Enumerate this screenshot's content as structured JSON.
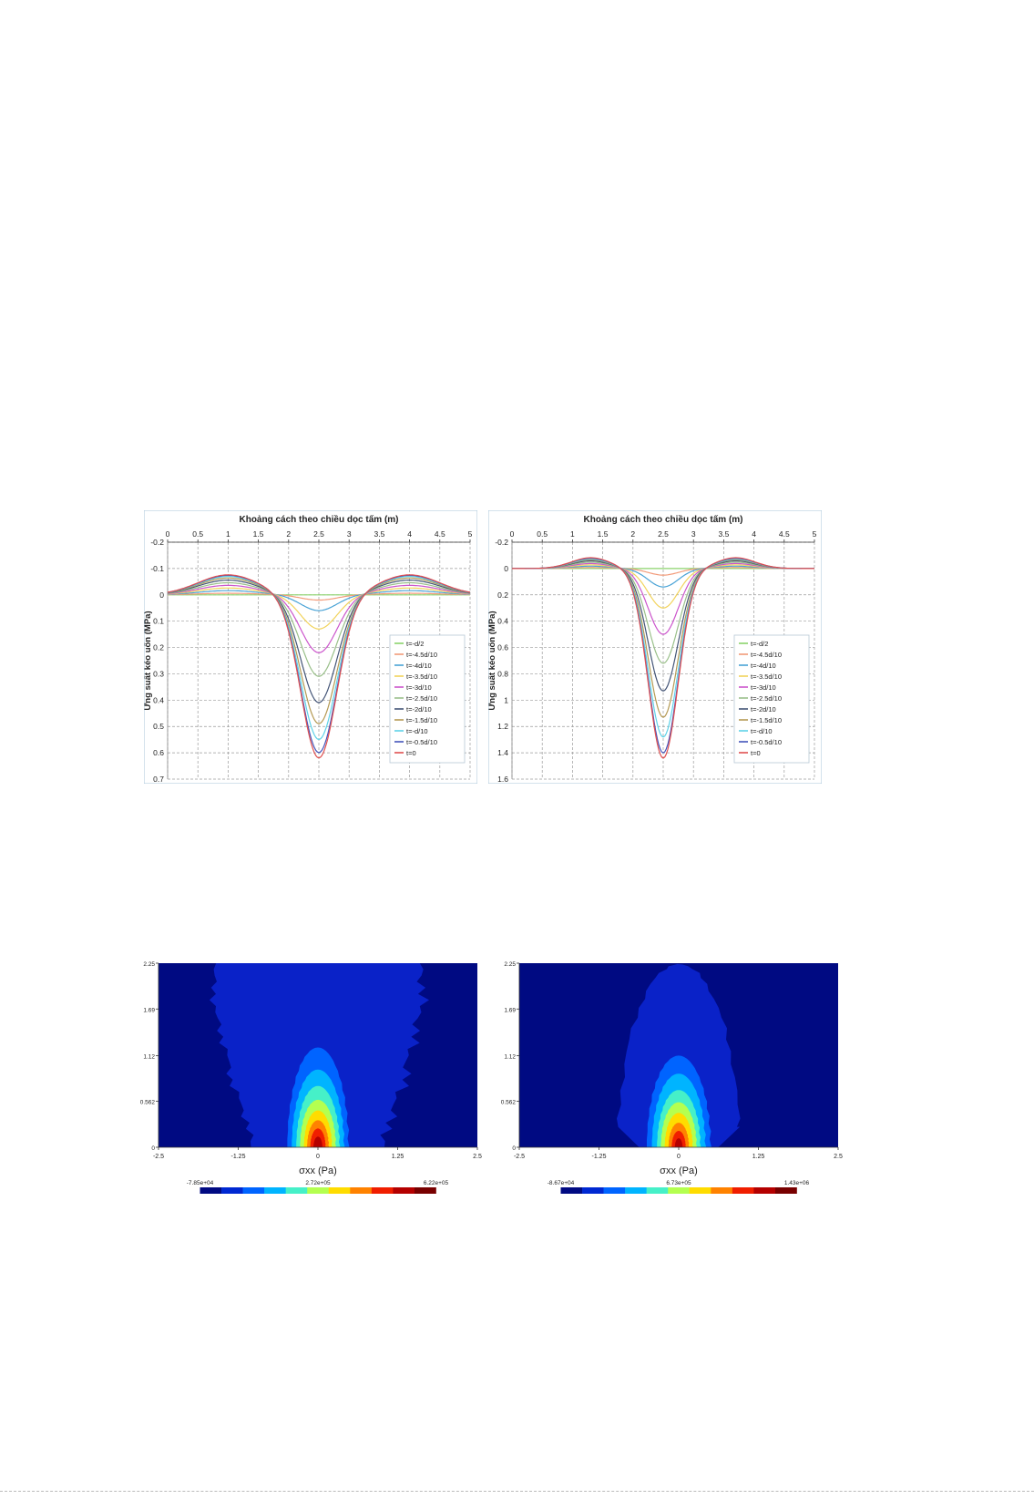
{
  "chart_data": [
    {
      "type": "line",
      "title": "Khoảng cách theo chiều dọc tấm (m)",
      "xlabel": "Khoảng cách theo chiều dọc tấm (m)",
      "ylabel": "Ứng suất kéo uốn (MPa)",
      "xlim": [
        0,
        5
      ],
      "ylim": [
        -0.2,
        0.7
      ],
      "y_inverted": true,
      "x_ticks": [
        "0",
        "0.5",
        "1",
        "1.5",
        "2",
        "2.5",
        "3",
        "3.5",
        "4",
        "4.5",
        "5"
      ],
      "y_ticks": [
        "-0.2",
        "-0.1",
        "0",
        "0.1",
        "0.2",
        "0.3",
        "0.4",
        "0.5",
        "0.6",
        "0.7"
      ],
      "grid": true,
      "legend_position": "right",
      "curve_model": {
        "center": 2.5,
        "width": 0.42,
        "side_peak_x": 1.0,
        "side_width": 0.7
      },
      "series": [
        {
          "name": "t=-d/2",
          "color": "#8bd36c",
          "peak": 0.0,
          "side": 0.0
        },
        {
          "name": "t=-4.5d/10",
          "color": "#f29b7a",
          "peak": 0.02,
          "side": -0.006
        },
        {
          "name": "t=-4d/10",
          "color": "#4aa3d6",
          "peak": 0.06,
          "side": -0.016
        },
        {
          "name": "t=-3.5d/10",
          "color": "#f2d35c",
          "peak": 0.13,
          "side": -0.026
        },
        {
          "name": "t=-3d/10",
          "color": "#cc55cc",
          "peak": 0.22,
          "side": -0.036
        },
        {
          "name": "t=-2.5d/10",
          "color": "#9ac08a",
          "peak": 0.31,
          "side": -0.046
        },
        {
          "name": "t=-2d/10",
          "color": "#445577",
          "peak": 0.41,
          "side": -0.056
        },
        {
          "name": "t=-1.5d/10",
          "color": "#b59a54",
          "peak": 0.49,
          "side": -0.064
        },
        {
          "name": "t=-d/10",
          "color": "#5fd2e8",
          "peak": 0.55,
          "side": -0.07
        },
        {
          "name": "t=-0.5d/10",
          "color": "#4455bb",
          "peak": 0.6,
          "side": -0.074
        },
        {
          "name": "t=0",
          "color": "#e05050",
          "peak": 0.62,
          "side": -0.076
        }
      ]
    },
    {
      "type": "line",
      "title": "Khoảng cách theo chiều dọc tấm (m)",
      "xlabel": "Khoảng cách theo chiều dọc tấm (m)",
      "ylabel": "Ứng suất kéo uốn (MPa)",
      "xlim": [
        0,
        5
      ],
      "ylim": [
        -0.2,
        1.6
      ],
      "y_inverted": true,
      "x_ticks": [
        "0",
        "0.5",
        "1",
        "1.5",
        "2",
        "2.5",
        "3",
        "3.5",
        "4",
        "4.5",
        "5"
      ],
      "y_ticks": [
        "-0.2",
        "0",
        "0.2",
        "0.4",
        "0.6",
        "0.8",
        "1",
        "1.2",
        "1.4",
        "1.6"
      ],
      "grid": true,
      "legend_position": "right",
      "curve_model": {
        "center": 2.5,
        "width": 0.35,
        "side_peak_x": 1.3,
        "side_width": 0.45
      },
      "series": [
        {
          "name": "t=-d/2",
          "color": "#8bd36c",
          "peak": 0.0,
          "side": 0.0
        },
        {
          "name": "t=-4.5d/10",
          "color": "#f29b7a",
          "peak": 0.05,
          "side": -0.008
        },
        {
          "name": "t=-4d/10",
          "color": "#4aa3d6",
          "peak": 0.14,
          "side": -0.018
        },
        {
          "name": "t=-3.5d/10",
          "color": "#f2d35c",
          "peak": 0.3,
          "side": -0.028
        },
        {
          "name": "t=-3d/10",
          "color": "#cc55cc",
          "peak": 0.5,
          "side": -0.038
        },
        {
          "name": "t=-2.5d/10",
          "color": "#9ac08a",
          "peak": 0.72,
          "side": -0.048
        },
        {
          "name": "t=-2d/10",
          "color": "#445577",
          "peak": 0.93,
          "side": -0.058
        },
        {
          "name": "t=-1.5d/10",
          "color": "#b59a54",
          "peak": 1.13,
          "side": -0.066
        },
        {
          "name": "t=-d/10",
          "color": "#5fd2e8",
          "peak": 1.28,
          "side": -0.072
        },
        {
          "name": "t=-0.5d/10",
          "color": "#4455bb",
          "peak": 1.4,
          "side": -0.078
        },
        {
          "name": "t=0",
          "color": "#e05050",
          "peak": 1.44,
          "side": -0.082
        }
      ]
    },
    {
      "type": "heatmap",
      "xlabel": "σxx (Pa)",
      "xlim": [
        -2.5,
        2.5
      ],
      "ylim": [
        0,
        2.25
      ],
      "x_ticks": [
        "-2.5",
        "-1.25",
        "0",
        "1.25",
        "2.5"
      ],
      "y_ticks": [
        "0",
        "0.562",
        "1.12",
        "1.69",
        "2.25"
      ],
      "colorbar": {
        "min": "-7.85e+04",
        "mid": "2.72e+05",
        "max": "6.22e+05"
      },
      "colors": [
        "#000a82",
        "#0028d2",
        "#0064ff",
        "#00b4ff",
        "#46f0c8",
        "#b4ff50",
        "#ffdc00",
        "#ff8200",
        "#f01e00",
        "#b40000",
        "#780000"
      ],
      "contours": [
        {
          "level": 1,
          "color": "#0a22c8",
          "kind": "band",
          "profile": [
            [
              0,
              0.58
            ],
            [
              0.3,
              0.56
            ],
            [
              0.8,
              0.46
            ],
            [
              1.2,
              0.42
            ],
            [
              1.6,
              0.36
            ],
            [
              2.0,
              0.34
            ],
            [
              2.25,
              0.36
            ]
          ],
          "bottom_halfwidth": 0.68,
          "offset": 0.15
        },
        {
          "level": 2,
          "color": "#0064ff",
          "rx": 0.48,
          "ry": 1.22
        },
        {
          "level": 3,
          "color": "#00b4ff",
          "rx": 0.41,
          "ry": 0.95
        },
        {
          "level": 4,
          "color": "#46f0c8",
          "rx": 0.34,
          "ry": 0.75
        },
        {
          "level": 5,
          "color": "#b4ff50",
          "rx": 0.28,
          "ry": 0.58
        },
        {
          "level": 6,
          "color": "#ffdc00",
          "rx": 0.22,
          "ry": 0.45
        },
        {
          "level": 7,
          "color": "#ff8200",
          "rx": 0.17,
          "ry": 0.33
        },
        {
          "level": 8,
          "color": "#f01e00",
          "rx": 0.12,
          "ry": 0.23
        },
        {
          "level": 9,
          "color": "#b40000",
          "rx": 0.07,
          "ry": 0.13
        }
      ]
    },
    {
      "type": "heatmap",
      "xlabel": "σxx (Pa)",
      "xlim": [
        -2.5,
        2.5
      ],
      "ylim": [
        0,
        2.25
      ],
      "x_ticks": [
        "-2.5",
        "-1.25",
        "0",
        "1.25",
        "2.5"
      ],
      "y_ticks": [
        "0",
        "0.562",
        "1.12",
        "1.69",
        "2.25"
      ],
      "colorbar": {
        "min": "-8.67e+04",
        "mid": "6.73e+05",
        "max": "1.43e+06"
      },
      "colors": [
        "#000a82",
        "#0028d2",
        "#0064ff",
        "#00b4ff",
        "#46f0c8",
        "#b4ff50",
        "#ffdc00",
        "#ff8200",
        "#f01e00",
        "#b40000",
        "#780000"
      ],
      "contours": [
        {
          "level": 1,
          "color": "#0a22c8",
          "kind": "dome",
          "rx": 0.95,
          "ry": 2.24,
          "bottom_halfwidth": 0.62,
          "offset": 0.0
        },
        {
          "level": 2,
          "color": "#0064ff",
          "rx": 0.5,
          "ry": 1.12
        },
        {
          "level": 3,
          "color": "#00b4ff",
          "rx": 0.42,
          "ry": 0.9
        },
        {
          "level": 4,
          "color": "#46f0c8",
          "rx": 0.34,
          "ry": 0.7
        },
        {
          "level": 5,
          "color": "#b4ff50",
          "rx": 0.28,
          "ry": 0.55
        },
        {
          "level": 6,
          "color": "#ffdc00",
          "rx": 0.22,
          "ry": 0.42
        },
        {
          "level": 7,
          "color": "#ff8200",
          "rx": 0.16,
          "ry": 0.3
        },
        {
          "level": 8,
          "color": "#f01e00",
          "rx": 0.11,
          "ry": 0.2
        },
        {
          "level": 9,
          "color": "#b40000",
          "rx": 0.06,
          "ry": 0.11
        }
      ]
    }
  ]
}
